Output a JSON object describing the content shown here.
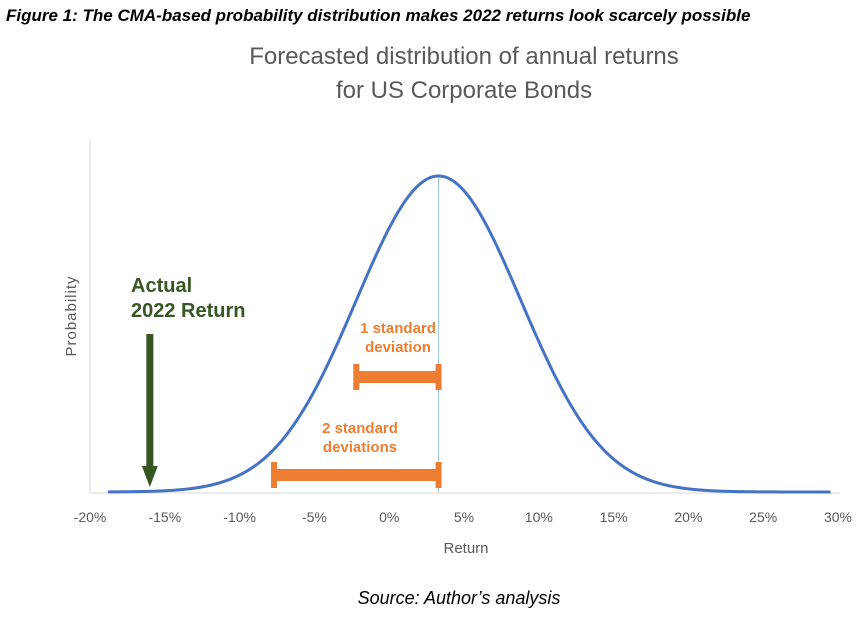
{
  "figure_caption": "Figure 1: The CMA-based probability distribution makes 2022 returns look scarcely possible",
  "source_note": "Source: Author’s analysis",
  "colors": {
    "curve": "#4472c4",
    "mean_line": "#9dc3e6",
    "annotation_green": "#375623",
    "annotation_orange": "#ed7d31",
    "axis": "#d9d9d9",
    "text_gray": "#595959"
  },
  "chart_data": {
    "type": "line",
    "title": [
      "Forecasted distribution of annual returns",
      "for US Corporate Bonds"
    ],
    "xlabel": "Return",
    "ylabel": "Probability",
    "x_unit": "%",
    "xlim": [
      -20,
      30
    ],
    "x_ticks": [
      -20,
      -15,
      -10,
      -5,
      0,
      5,
      10,
      15,
      20,
      25,
      30
    ],
    "x_tick_labels": [
      "-20%",
      "-15%",
      "-10%",
      "-5%",
      "0%",
      "5%",
      "10%",
      "15%",
      "20%",
      "25%",
      "30%"
    ],
    "grid": false,
    "legend": "none",
    "series": [
      {
        "distribution": "normal",
        "mean": 3.3,
        "std_dev": 5.5,
        "x_range": [
          -18.8,
          29.5
        ]
      }
    ],
    "annotations": {
      "actual_2022_return": {
        "label_lines": [
          "Actual",
          "2022 Return"
        ],
        "x": -16
      },
      "one_std_dev": {
        "label_lines": [
          "1 standard",
          "deviation"
        ],
        "from": -2.2,
        "to": 3.3
      },
      "two_std_dev": {
        "label_lines": [
          "2 standard",
          "deviations"
        ],
        "from": -7.7,
        "to": 3.3
      }
    }
  }
}
